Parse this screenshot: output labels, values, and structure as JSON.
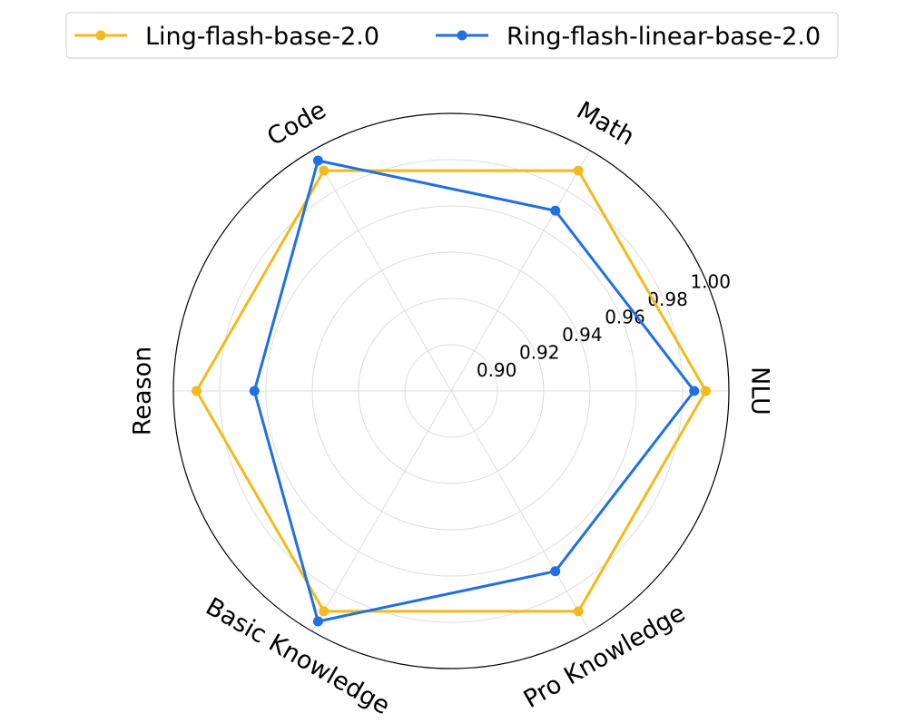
{
  "chart_data": {
    "type": "radar",
    "title": "",
    "categories": [
      "NLU",
      "Math",
      "Code",
      "Reason",
      "Basic Knowledge",
      "Pro Knowledge"
    ],
    "radial_ticks": [
      0.9,
      0.92,
      0.94,
      0.96,
      0.98,
      1.0
    ],
    "radial_tick_labels": [
      "0.90",
      "0.92",
      "0.94",
      "0.96",
      "0.98",
      "1.00"
    ],
    "rlim": [
      0.88,
      1.0
    ],
    "grid": true,
    "legend_position": "top-center",
    "series": [
      {
        "name": "Ling-flash-base-2.0",
        "color": "#F2BA1A",
        "values": [
          0.99,
          0.99,
          0.99,
          0.99,
          0.99,
          0.99
        ]
      },
      {
        "name": "Ring-flash-linear-base-2.0",
        "color": "#1F6FE5",
        "values": [
          0.985,
          0.97,
          0.995,
          0.965,
          0.995,
          0.97
        ]
      }
    ]
  }
}
